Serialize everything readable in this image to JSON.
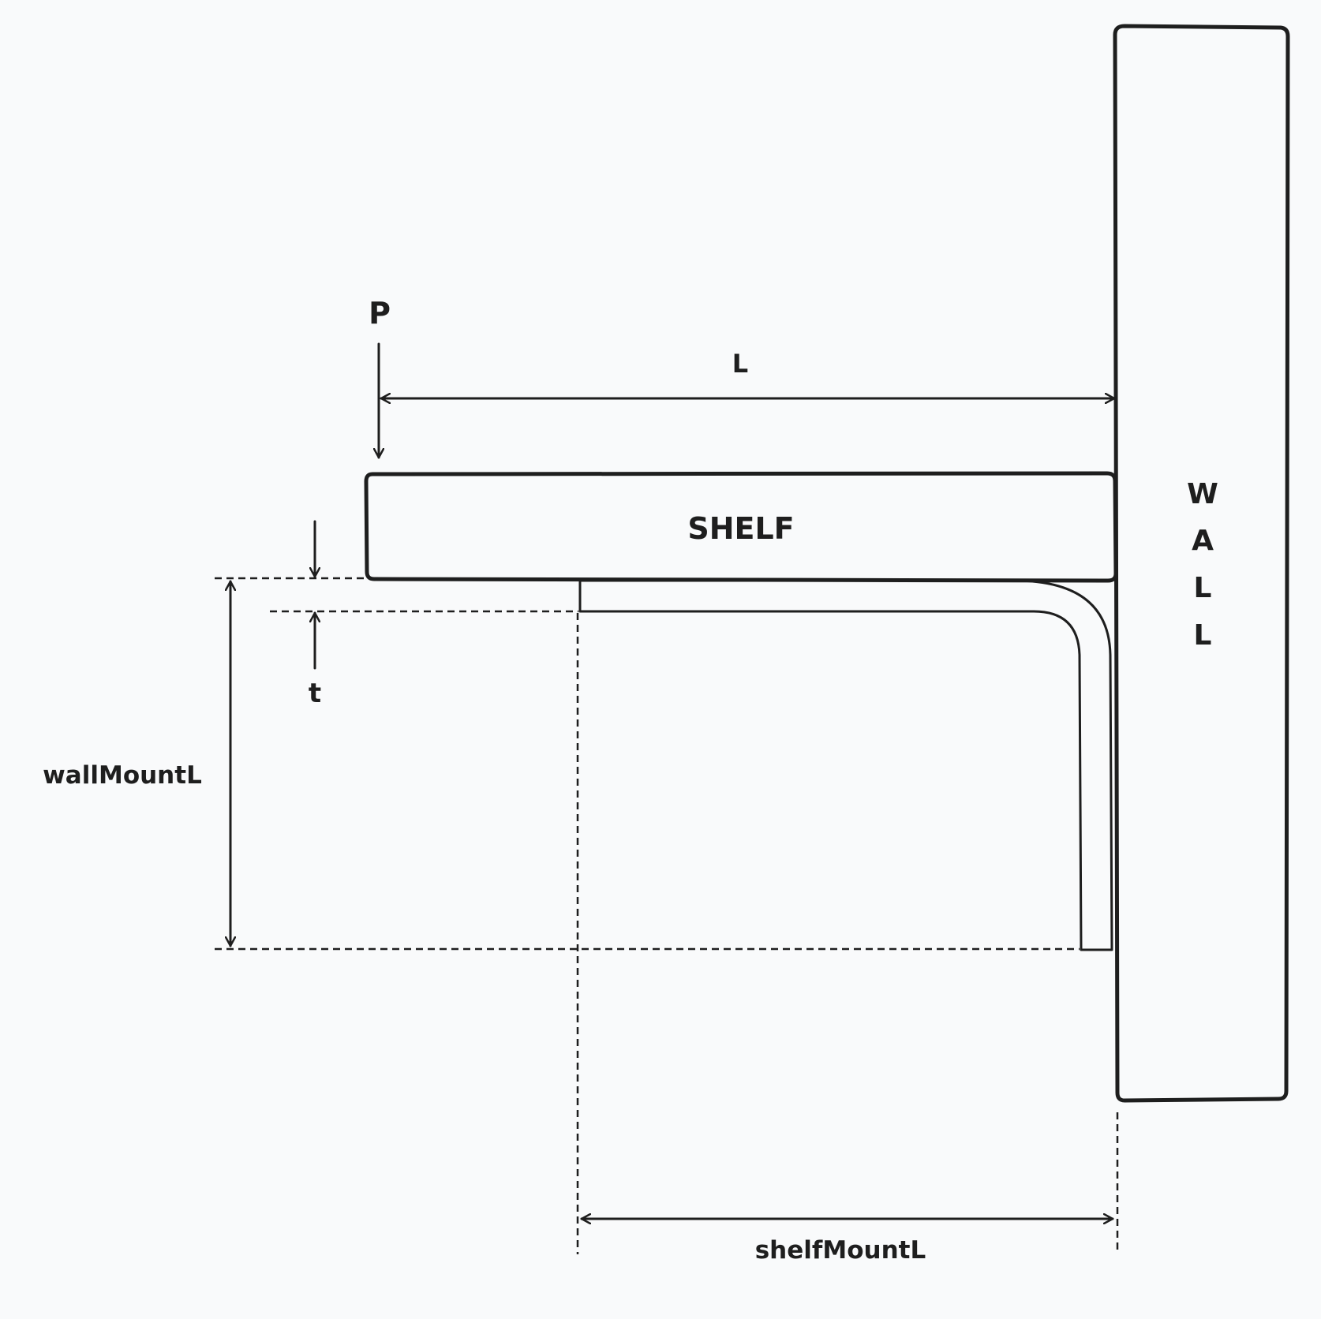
{
  "labels": {
    "load": "P",
    "shelf_length": "L",
    "shelf": "SHELF",
    "wall_letters": [
      "W",
      "A",
      "L",
      "L"
    ],
    "thickness": "t",
    "wall_mount_length": "wallMountL",
    "shelf_mount_length": "shelfMountL"
  },
  "colors": {
    "background": "#f9fafb",
    "stroke": "#1e1e1e",
    "fill": "#ffffff"
  }
}
